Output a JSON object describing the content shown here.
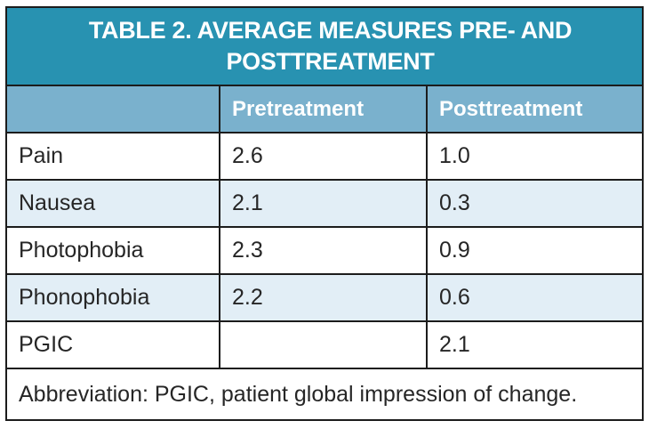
{
  "table": {
    "title_line1": "TABLE 2. AVERAGE MEASURES PRE- AND",
    "title_line2": "POSTTREATMENT",
    "columns": [
      "",
      "Pretreatment",
      "Posttreatment"
    ],
    "rows": [
      {
        "label": "Pain",
        "pre": "2.6",
        "post": "1.0"
      },
      {
        "label": "Nausea",
        "pre": "2.1",
        "post": "0.3"
      },
      {
        "label": "Photophobia",
        "pre": "2.3",
        "post": "0.9"
      },
      {
        "label": "Phonophobia",
        "pre": "2.2",
        "post": "0.6"
      },
      {
        "label": "PGIC",
        "pre": "",
        "post": "2.1"
      }
    ],
    "footnote": "Abbreviation: PGIC, patient global impression of change."
  },
  "colors": {
    "title_bg": "#2892B1",
    "header_bg": "#7AB1CD",
    "alt_row_bg": "#E2EEF6",
    "border": "#1C1C1C",
    "body_text": "#262626",
    "header_text": "#FFFFFF"
  },
  "chart_data": {
    "type": "table",
    "title": "TABLE 2. AVERAGE MEASURES PRE- AND POSTTREATMENT",
    "categories": [
      "Pain",
      "Nausea",
      "Photophobia",
      "Phonophobia",
      "PGIC"
    ],
    "series": [
      {
        "name": "Pretreatment",
        "values": [
          2.6,
          2.1,
          2.3,
          2.2,
          null
        ]
      },
      {
        "name": "Posttreatment",
        "values": [
          1.0,
          0.3,
          0.9,
          0.6,
          2.1
        ]
      }
    ]
  }
}
